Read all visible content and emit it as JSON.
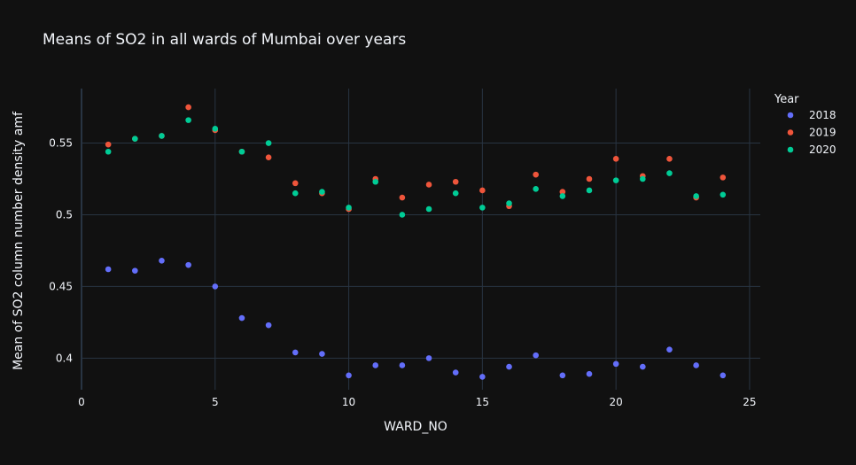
{
  "chart_data": {
    "type": "scatter",
    "title": "Means of SO2 in all wards of Mumbai over years",
    "xlabel": "WARD_NO",
    "ylabel": "Mean of SO2 column number density amf",
    "xlim": [
      0,
      25.4
    ],
    "ylim": [
      0.378,
      0.588
    ],
    "xticks": [
      0,
      5,
      10,
      15,
      20,
      25
    ],
    "xtick_labels": [
      "0",
      "5",
      "10",
      "15",
      "20",
      "25"
    ],
    "yticks": [
      0.4,
      0.45,
      0.5,
      0.55
    ],
    "ytick_labels": [
      "0.4",
      "0.45",
      "0.5",
      "0.55"
    ],
    "grid": true,
    "legend": {
      "title": "Year",
      "placement": "top-right"
    },
    "series": [
      {
        "name": "2018",
        "color": "#636efa",
        "x": [
          1,
          2,
          3,
          4,
          5,
          6,
          7,
          8,
          9,
          10,
          11,
          12,
          13,
          14,
          15,
          16,
          17,
          18,
          19,
          20,
          21,
          22,
          23,
          24
        ],
        "y": [
          0.462,
          0.461,
          0.468,
          0.465,
          0.45,
          0.428,
          0.423,
          0.404,
          0.403,
          0.388,
          0.395,
          0.395,
          0.4,
          0.39,
          0.387,
          0.394,
          0.402,
          0.388,
          0.389,
          0.396,
          0.394,
          0.406,
          0.395,
          0.388
        ]
      },
      {
        "name": "2019",
        "color": "#ef553b",
        "x": [
          1,
          2,
          3,
          4,
          5,
          6,
          7,
          8,
          9,
          10,
          11,
          12,
          13,
          14,
          15,
          16,
          17,
          18,
          19,
          20,
          21,
          22,
          23,
          24
        ],
        "y": [
          0.549,
          0.553,
          0.555,
          0.575,
          0.559,
          0.544,
          0.54,
          0.522,
          0.515,
          0.504,
          0.525,
          0.512,
          0.521,
          0.523,
          0.517,
          0.506,
          0.528,
          0.516,
          0.525,
          0.539,
          0.527,
          0.539,
          0.512,
          0.526
        ]
      },
      {
        "name": "2020",
        "color": "#00cc96",
        "x": [
          1,
          2,
          3,
          4,
          5,
          6,
          7,
          8,
          9,
          10,
          11,
          12,
          13,
          14,
          15,
          16,
          17,
          18,
          19,
          20,
          21,
          22,
          23,
          24
        ],
        "y": [
          0.544,
          0.553,
          0.555,
          0.566,
          0.56,
          0.544,
          0.55,
          0.515,
          0.516,
          0.505,
          0.523,
          0.5,
          0.504,
          0.515,
          0.505,
          0.508,
          0.518,
          0.513,
          0.517,
          0.524,
          0.525,
          0.529,
          0.513,
          0.514
        ]
      }
    ]
  }
}
